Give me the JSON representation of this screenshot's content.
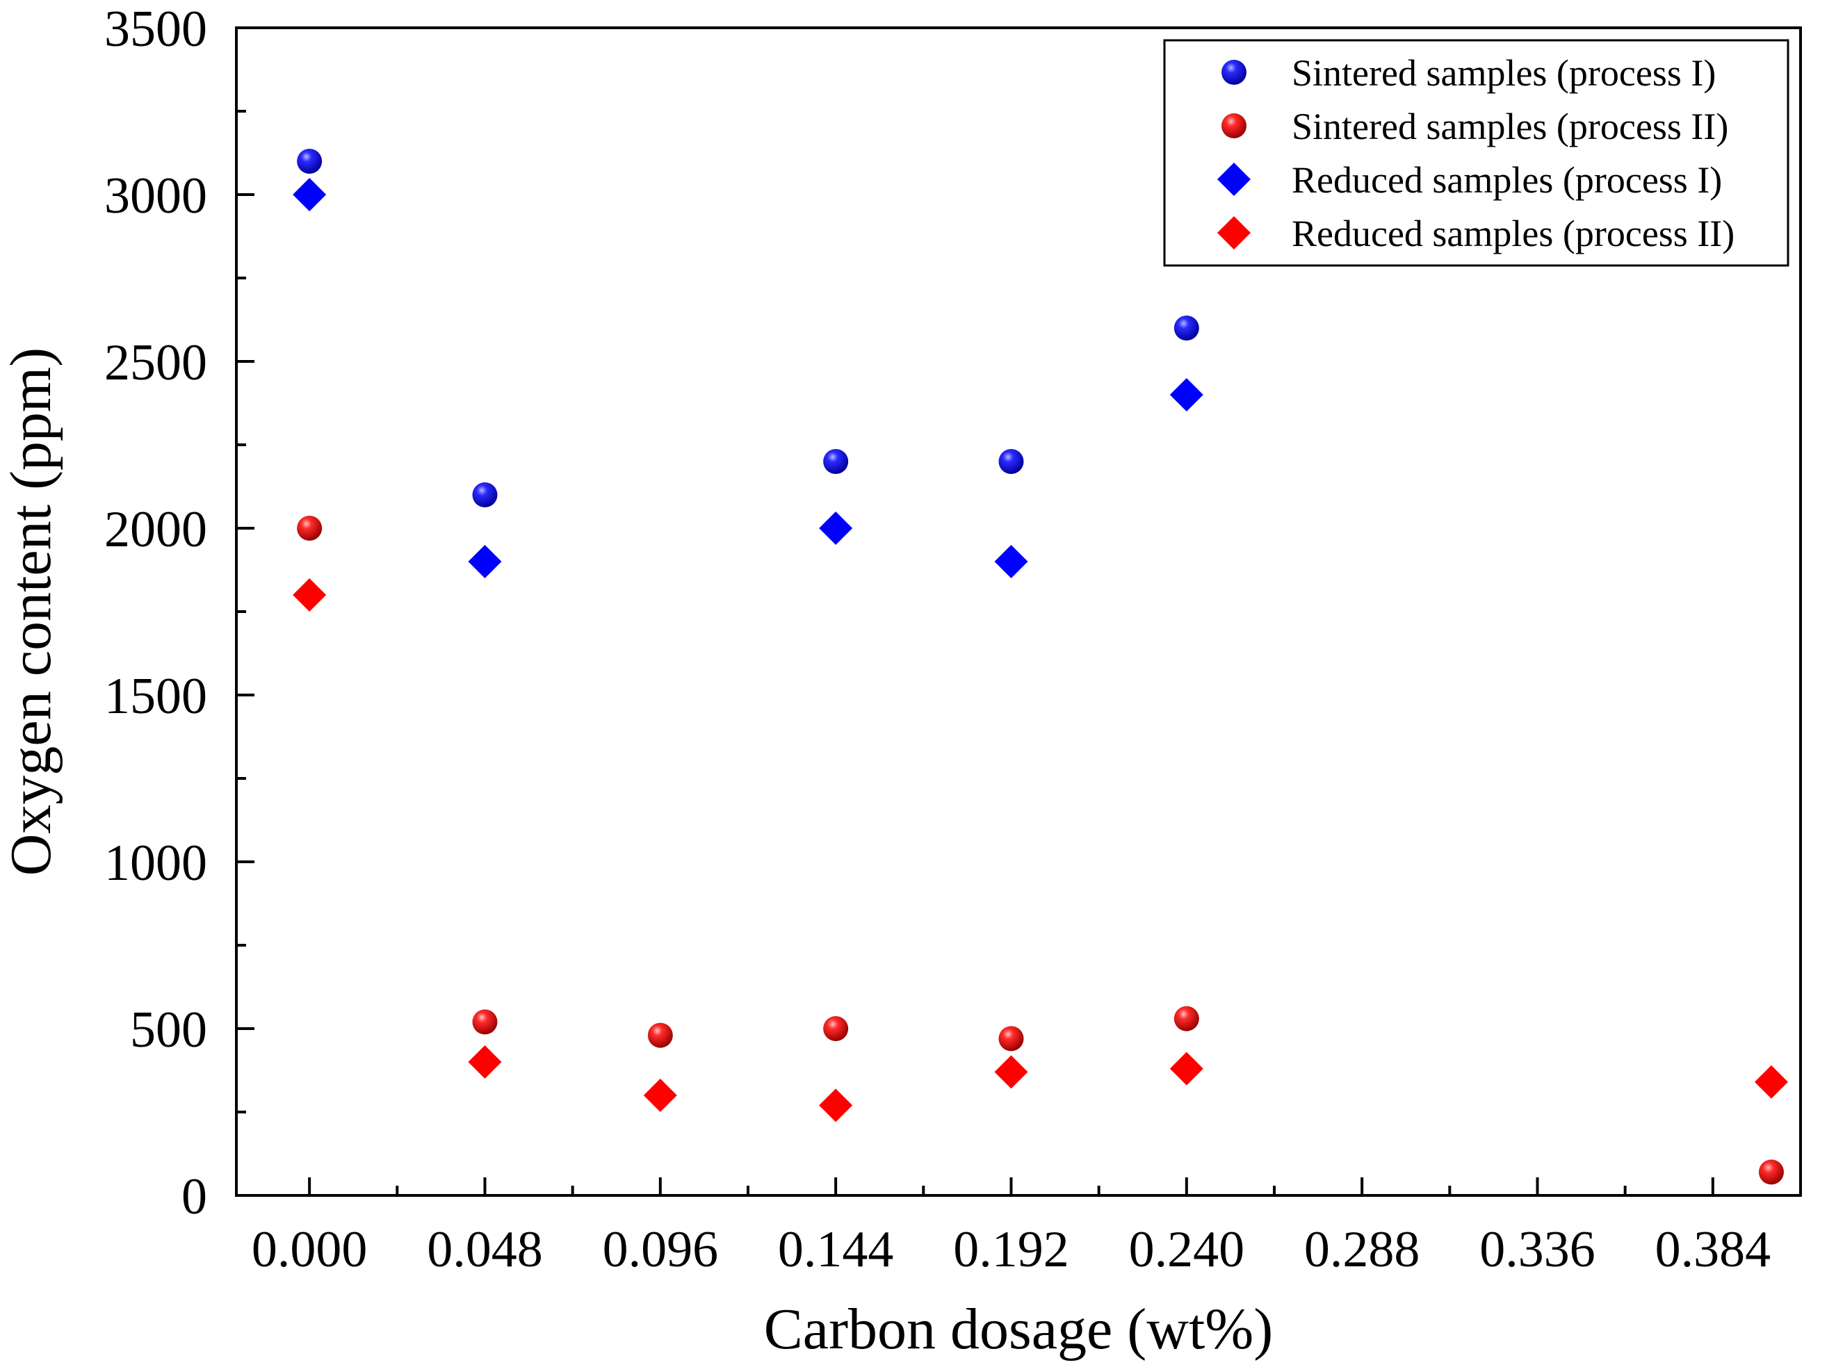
{
  "chart_data": {
    "type": "scatter",
    "xlabel": "Carbon dosage (wt%)",
    "ylabel": "Oxygen content (ppm)",
    "xlim": [
      -0.02,
      0.408
    ],
    "ylim": [
      0,
      3500
    ],
    "x_ticks": [
      "0.000",
      "0.048",
      "0.096",
      "0.144",
      "0.192",
      "0.240",
      "0.288",
      "0.336",
      "0.384"
    ],
    "y_ticks": [
      "0",
      "500",
      "1000",
      "1500",
      "2000",
      "2500",
      "3000",
      "3500"
    ],
    "grid": false,
    "legend_position": "top-right",
    "series": [
      {
        "name": "Sintered samples (process I)",
        "marker": "circle",
        "color": "#0000ee",
        "points": [
          {
            "x": 0.0,
            "y": 3100
          },
          {
            "x": 0.048,
            "y": 2100
          },
          {
            "x": 0.144,
            "y": 2200
          },
          {
            "x": 0.192,
            "y": 2200
          },
          {
            "x": 0.24,
            "y": 2600
          }
        ]
      },
      {
        "name": "Sintered samples (process II)",
        "marker": "circle",
        "color": "#ee0000",
        "points": [
          {
            "x": 0.0,
            "y": 2000
          },
          {
            "x": 0.048,
            "y": 520
          },
          {
            "x": 0.096,
            "y": 480
          },
          {
            "x": 0.144,
            "y": 500
          },
          {
            "x": 0.192,
            "y": 470
          },
          {
            "x": 0.24,
            "y": 530
          },
          {
            "x": 0.4,
            "y": 70
          }
        ]
      },
      {
        "name": "Reduced samples (process I)",
        "marker": "diamond",
        "color": "#0000ff",
        "points": [
          {
            "x": 0.0,
            "y": 3000
          },
          {
            "x": 0.048,
            "y": 1900
          },
          {
            "x": 0.144,
            "y": 2000
          },
          {
            "x": 0.192,
            "y": 1900
          },
          {
            "x": 0.24,
            "y": 2400
          }
        ]
      },
      {
        "name": "Reduced samples (process II)",
        "marker": "diamond",
        "color": "#ff0000",
        "points": [
          {
            "x": 0.0,
            "y": 1800
          },
          {
            "x": 0.048,
            "y": 400
          },
          {
            "x": 0.096,
            "y": 300
          },
          {
            "x": 0.144,
            "y": 270
          },
          {
            "x": 0.192,
            "y": 370
          },
          {
            "x": 0.24,
            "y": 380
          },
          {
            "x": 0.4,
            "y": 340
          }
        ]
      }
    ]
  }
}
